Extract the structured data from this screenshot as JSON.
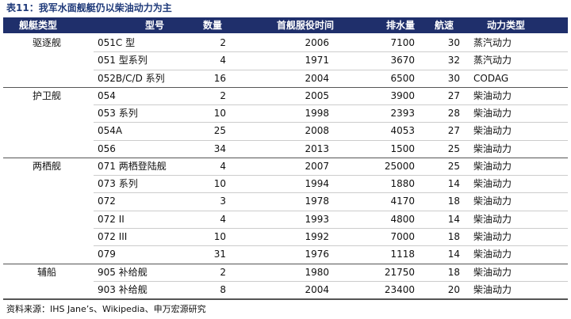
{
  "title": "表11：我军水面舰艇仍以柴油动力为主",
  "table": {
    "header": [
      "舰艇类型",
      "型号",
      "数量",
      "首舰服役时间",
      "排水量",
      "航速",
      "动力类型"
    ],
    "groups": [
      {
        "name": "驱逐舰",
        "rows": [
          [
            "051C 型",
            2,
            2006,
            7100,
            30,
            "蒸汽动力"
          ],
          [
            "051 型系列",
            4,
            1971,
            3670,
            32,
            "蒸汽动力"
          ],
          [
            "052B/C/D 系列",
            16,
            2004,
            6500,
            30,
            "CODAG"
          ]
        ]
      },
      {
        "name": "护卫舰",
        "rows": [
          [
            "054",
            2,
            2005,
            3900,
            27,
            "柴油动力"
          ],
          [
            "053 系列",
            10,
            1998,
            2393,
            28,
            "柴油动力"
          ],
          [
            "054A",
            25,
            2008,
            4053,
            27,
            "柴油动力"
          ],
          [
            "056",
            34,
            2013,
            1500,
            25,
            "柴油动力"
          ]
        ]
      },
      {
        "name": "两栖舰",
        "rows": [
          [
            "071 两栖登陆舰",
            4,
            2007,
            25000,
            25,
            "柴油动力"
          ],
          [
            "073 系列",
            10,
            1994,
            1880,
            14,
            "柴油动力"
          ],
          [
            "072",
            3,
            1978,
            4170,
            18,
            "柴油动力"
          ],
          [
            "072 II",
            4,
            1993,
            4800,
            14,
            "柴油动力"
          ],
          [
            "072 III",
            10,
            1992,
            7000,
            18,
            "柴油动力"
          ],
          [
            "079",
            31,
            1976,
            1118,
            14,
            "柴油动力"
          ]
        ]
      },
      {
        "name": "辅船",
        "rows": [
          [
            "905 补给舰",
            2,
            1980,
            21750,
            18,
            "柴油动力"
          ],
          [
            "903 补给舰",
            8,
            2004,
            23400,
            20,
            "柴油动力"
          ]
        ]
      }
    ]
  },
  "source": "资料来源：IHS Jane’s、Wikipedia、申万宏源研究"
}
